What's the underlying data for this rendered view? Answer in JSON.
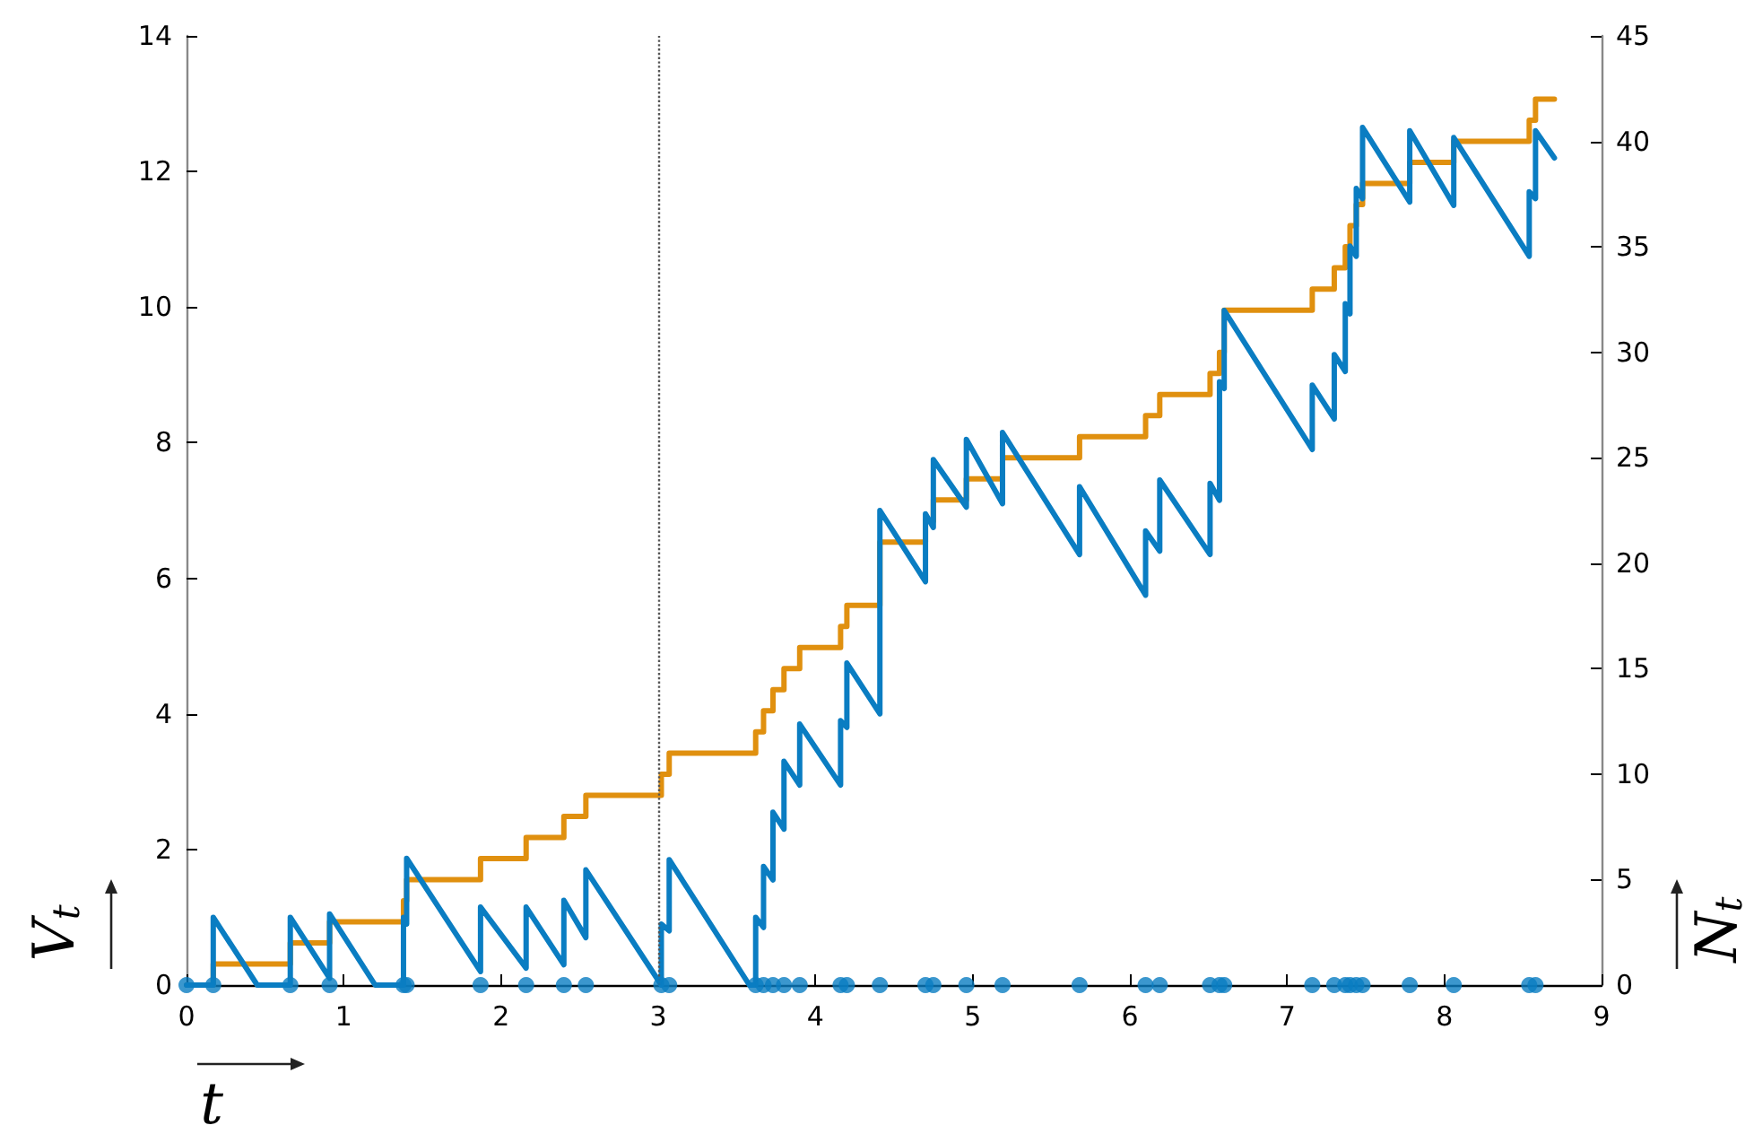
{
  "chart_data": {
    "type": "line",
    "xlabel": "t",
    "ylabel": "V$_{t}$",
    "y2label": "N$_{t}$",
    "xlim": [
      0,
      9
    ],
    "xticks": [
      0,
      1,
      2,
      3,
      4,
      5,
      6,
      7,
      8,
      9
    ],
    "ylim": [
      0,
      14
    ],
    "yticks": [
      0,
      2,
      4,
      6,
      8,
      10,
      12,
      14
    ],
    "y2lim": [
      0,
      45
    ],
    "y2ticks": [
      0,
      5,
      10,
      15,
      20,
      25,
      30,
      35,
      40,
      45
    ],
    "ref_lines": [
      {
        "axis": "x",
        "value": 3,
        "color": "#555555",
        "line_style": "dotted"
      }
    ],
    "series": [
      {
        "color": "#0a7dc2",
        "marker": "none",
        "line_style": "solid",
        "x": [
          0,
          0.17,
          0.17,
          0.45,
          0.66,
          0.66,
          0.91,
          0.91,
          1.2,
          1.38,
          1.38,
          1.4,
          1.4,
          1.87,
          1.87,
          2.16,
          2.16,
          2.4,
          2.4,
          2.54,
          2.54,
          3.02,
          3.02,
          3.07,
          3.07,
          3.58,
          3.62,
          3.62,
          3.67,
          3.67,
          3.73,
          3.73,
          3.8,
          3.8,
          3.9,
          3.9,
          4.16,
          4.16,
          4.2,
          4.2,
          4.41,
          4.41,
          4.7,
          4.7,
          4.75,
          4.75,
          4.96,
          4.96,
          5.19,
          5.19,
          5.68,
          5.68,
          6.1,
          6.1,
          6.19,
          6.19,
          6.51,
          6.51,
          6.57,
          6.57,
          6.6,
          6.6,
          7.16,
          7.16,
          7.3,
          7.3,
          7.37,
          7.37,
          7.4,
          7.4,
          7.44,
          7.44,
          7.48,
          7.48,
          7.78,
          7.78,
          8.06,
          8.06,
          8.54,
          8.54,
          8.58,
          8.58,
          8.7
        ],
        "values": [
          0,
          0,
          1,
          0,
          0,
          1,
          0.1,
          1.05,
          0,
          0,
          1,
          0.9,
          1.87,
          0.2,
          1.15,
          0.25,
          1.15,
          0.3,
          1.25,
          0.7,
          1.7,
          0,
          0.9,
          0.8,
          1.85,
          0,
          0,
          1,
          0.85,
          1.75,
          1.55,
          2.55,
          2.3,
          3.3,
          2.95,
          3.85,
          2.95,
          3.9,
          3.8,
          4.75,
          4,
          7,
          5.95,
          6.95,
          6.75,
          7.75,
          7.05,
          8.05,
          7.1,
          8.15,
          6.35,
          7.35,
          5.75,
          6.7,
          6.4,
          7.45,
          6.35,
          7.4,
          7.15,
          8.9,
          8.8,
          9.95,
          7.9,
          8.85,
          8.35,
          9.3,
          9.05,
          10.05,
          9.9,
          10.9,
          10.75,
          11.75,
          11.6,
          12.65,
          11.55,
          12.6,
          11.5,
          12.5,
          10.75,
          11.7,
          11.6,
          12.6,
          12.2
        ]
      },
      {
        "type": "step",
        "axis": "y2",
        "color": "#e0900f",
        "marker": "none",
        "line_style": "solid",
        "x": [
          0,
          0.17,
          0.66,
          0.91,
          1.38,
          1.4,
          1.87,
          2.16,
          2.4,
          2.54,
          3.02,
          3.07,
          3.62,
          3.67,
          3.73,
          3.8,
          3.9,
          4.16,
          4.2,
          4.41,
          4.7,
          4.75,
          4.96,
          5.19,
          5.68,
          6.1,
          6.19,
          6.51,
          6.57,
          6.6,
          7.16,
          7.3,
          7.37,
          7.4,
          7.44,
          7.48,
          7.78,
          8.06,
          8.54,
          8.58,
          8.7
        ],
        "values": [
          0,
          1,
          2,
          3,
          4,
          5,
          6,
          7,
          8,
          9,
          10,
          11,
          12,
          13,
          14,
          15,
          16,
          17,
          18,
          21,
          22,
          23,
          24,
          25,
          26,
          27,
          28,
          29,
          30,
          32,
          33,
          34,
          35,
          36,
          37,
          38,
          39,
          40,
          41,
          42,
          42
        ]
      },
      {
        "type": "scatter",
        "color": "#0a7dc2",
        "marker": "circle",
        "x": [
          0,
          0.17,
          0.66,
          0.91,
          1.38,
          1.4,
          1.87,
          2.16,
          2.4,
          2.54,
          3.02,
          3.07,
          3.62,
          3.67,
          3.73,
          3.8,
          3.9,
          4.16,
          4.2,
          4.41,
          4.7,
          4.75,
          4.96,
          5.19,
          5.68,
          6.1,
          6.19,
          6.51,
          6.57,
          6.6,
          7.16,
          7.3,
          7.37,
          7.4,
          7.44,
          7.48,
          7.78,
          8.06,
          8.54,
          8.58
        ],
        "values": [
          0,
          0,
          0,
          0,
          0,
          0,
          0,
          0,
          0,
          0,
          0,
          0,
          0,
          0,
          0,
          0,
          0,
          0,
          0,
          0,
          0,
          0,
          0,
          0,
          0,
          0,
          0,
          0,
          0,
          0,
          0,
          0,
          0,
          0,
          0,
          0,
          0,
          0,
          0,
          0
        ]
      }
    ]
  }
}
